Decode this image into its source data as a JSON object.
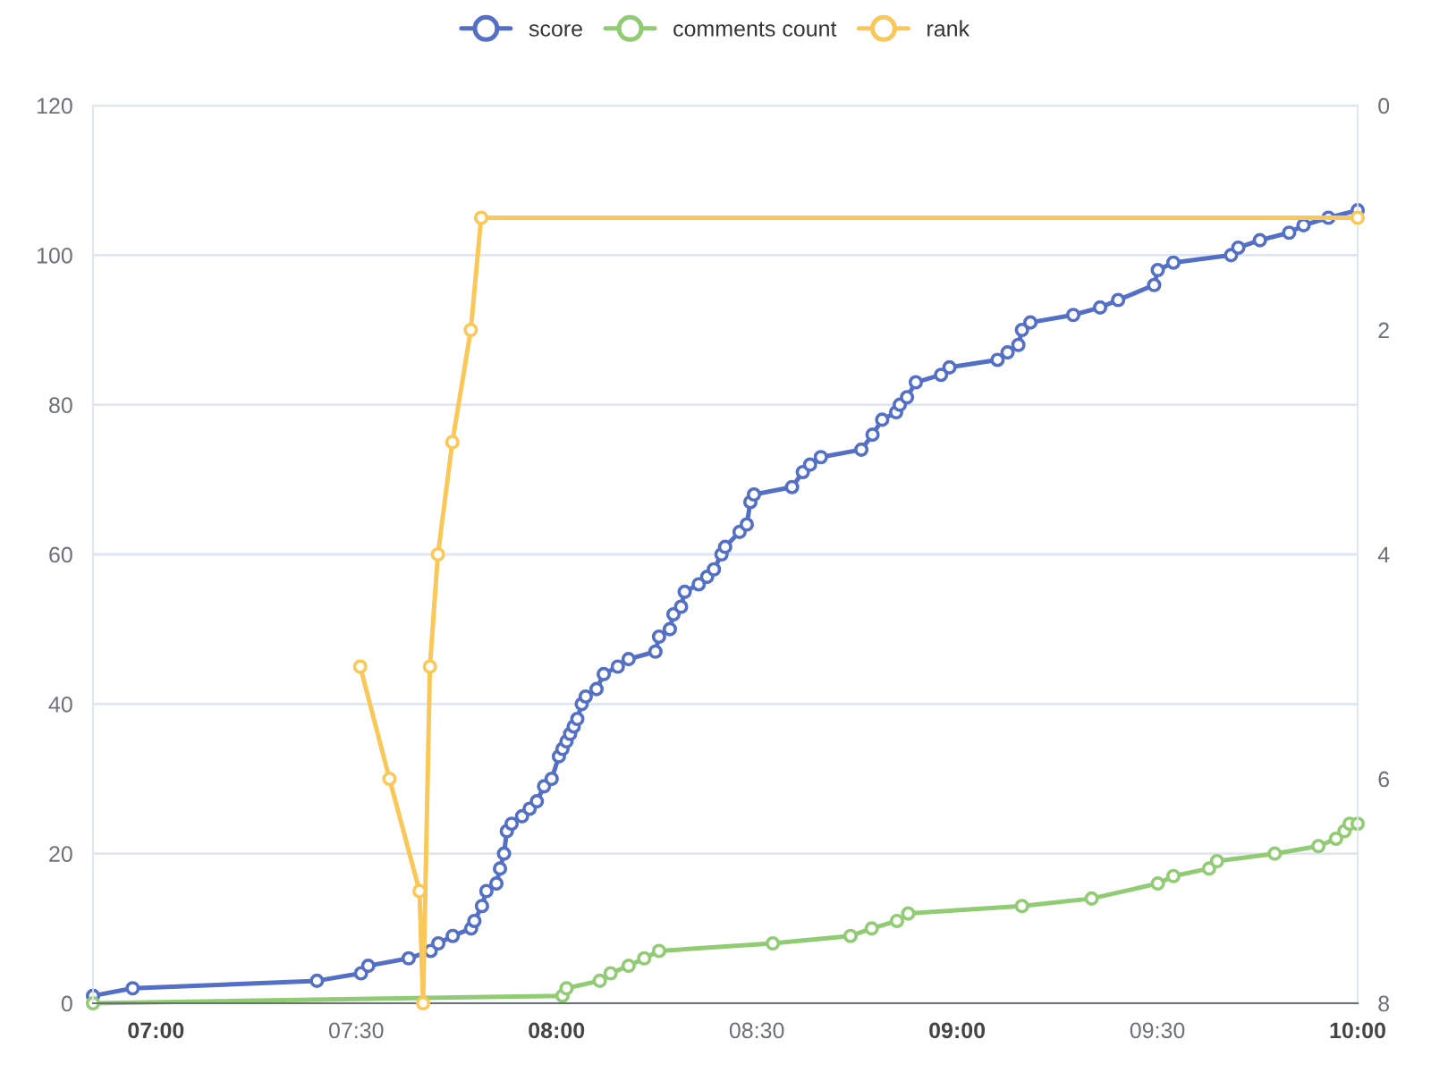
{
  "chart_data": {
    "type": "line",
    "x": [
      6.843,
      6.942,
      7.402,
      7.512,
      7.53,
      7.631,
      7.686,
      7.705,
      7.741,
      7.787,
      7.795,
      7.814,
      7.825,
      7.85,
      7.859,
      7.869,
      7.876,
      7.888,
      7.914,
      7.933,
      7.951,
      7.969,
      7.988,
      8.006,
      8.015,
      8.025,
      8.034,
      8.043,
      8.052,
      8.063,
      8.073,
      8.1,
      8.118,
      8.153,
      8.18,
      8.247,
      8.256,
      8.283,
      8.292,
      8.311,
      8.32,
      8.355,
      8.376,
      8.393,
      8.412,
      8.421,
      8.457,
      8.475,
      8.484,
      8.493,
      8.588,
      8.615,
      8.633,
      8.66,
      8.761,
      8.789,
      8.813,
      8.848,
      8.857,
      8.875,
      8.897,
      8.96,
      8.981,
      9.101,
      9.126,
      9.153,
      9.162,
      9.183,
      9.29,
      9.357,
      9.402,
      9.492,
      9.501,
      9.54,
      9.684,
      9.702,
      9.756,
      9.829,
      9.865,
      9.927,
      10.0
    ],
    "series": [
      {
        "name": "score",
        "color": "#5470c6",
        "values": [
          1,
          2,
          3,
          4,
          5,
          6,
          7,
          8,
          9,
          10,
          11,
          13,
          15,
          16,
          18,
          20,
          23,
          24,
          25,
          26,
          27,
          29,
          30,
          33,
          34,
          35,
          36,
          37,
          38,
          40,
          41,
          42,
          44,
          45,
          46,
          47,
          49,
          50,
          52,
          53,
          55,
          56,
          57,
          58,
          60,
          61,
          63,
          64,
          67,
          68,
          69,
          71,
          72,
          73,
          74,
          76,
          78,
          79,
          80,
          81,
          83,
          84,
          85,
          86,
          87,
          88,
          90,
          91,
          92,
          93,
          94,
          96,
          98,
          99,
          100,
          101,
          102,
          103,
          104,
          105,
          106
        ]
      },
      {
        "name": "comments count",
        "color": "#91cc75",
        "x": [
          6.843,
          8.015,
          8.025,
          8.108,
          8.135,
          8.18,
          8.219,
          8.256,
          8.54,
          8.734,
          8.787,
          8.85,
          8.878,
          9.162,
          9.336,
          9.501,
          9.54,
          9.629,
          9.649,
          9.793,
          9.902,
          9.946,
          9.967,
          9.98,
          10.0
        ],
        "values": [
          0,
          1,
          2,
          3,
          4,
          5,
          6,
          7,
          8,
          9,
          10,
          11,
          12,
          13,
          14,
          16,
          17,
          18,
          19,
          20,
          21,
          22,
          23,
          24,
          24
        ]
      },
      {
        "name": "rank",
        "color": "#fac858",
        "axis": "y2",
        "x": [
          7.51,
          7.583,
          7.658,
          7.667,
          7.684,
          7.704,
          7.74,
          7.786,
          7.812,
          10.0
        ],
        "values": [
          5,
          6,
          7,
          8,
          5,
          4,
          3,
          2,
          1,
          1
        ]
      }
    ],
    "xlim": [
      6.843,
      10.0
    ],
    "xticks": [
      {
        "value": 7,
        "label": "07:00"
      },
      {
        "value": 7.5,
        "label": "07:30"
      },
      {
        "value": 8,
        "label": "08:00"
      },
      {
        "value": 8.5,
        "label": "08:30"
      },
      {
        "value": 9,
        "label": "09:00"
      },
      {
        "value": 9.5,
        "label": "09:30"
      },
      {
        "value": 10,
        "label": "10:00"
      }
    ],
    "ylim": [
      0,
      120
    ],
    "yticks": [
      0,
      20,
      40,
      60,
      80,
      100,
      120
    ],
    "y2lim": [
      8,
      0
    ],
    "y2ticks": [
      0,
      2,
      4,
      6,
      8
    ],
    "grid": "y",
    "legend": "top",
    "marker": "circle",
    "line_style": "solid"
  }
}
